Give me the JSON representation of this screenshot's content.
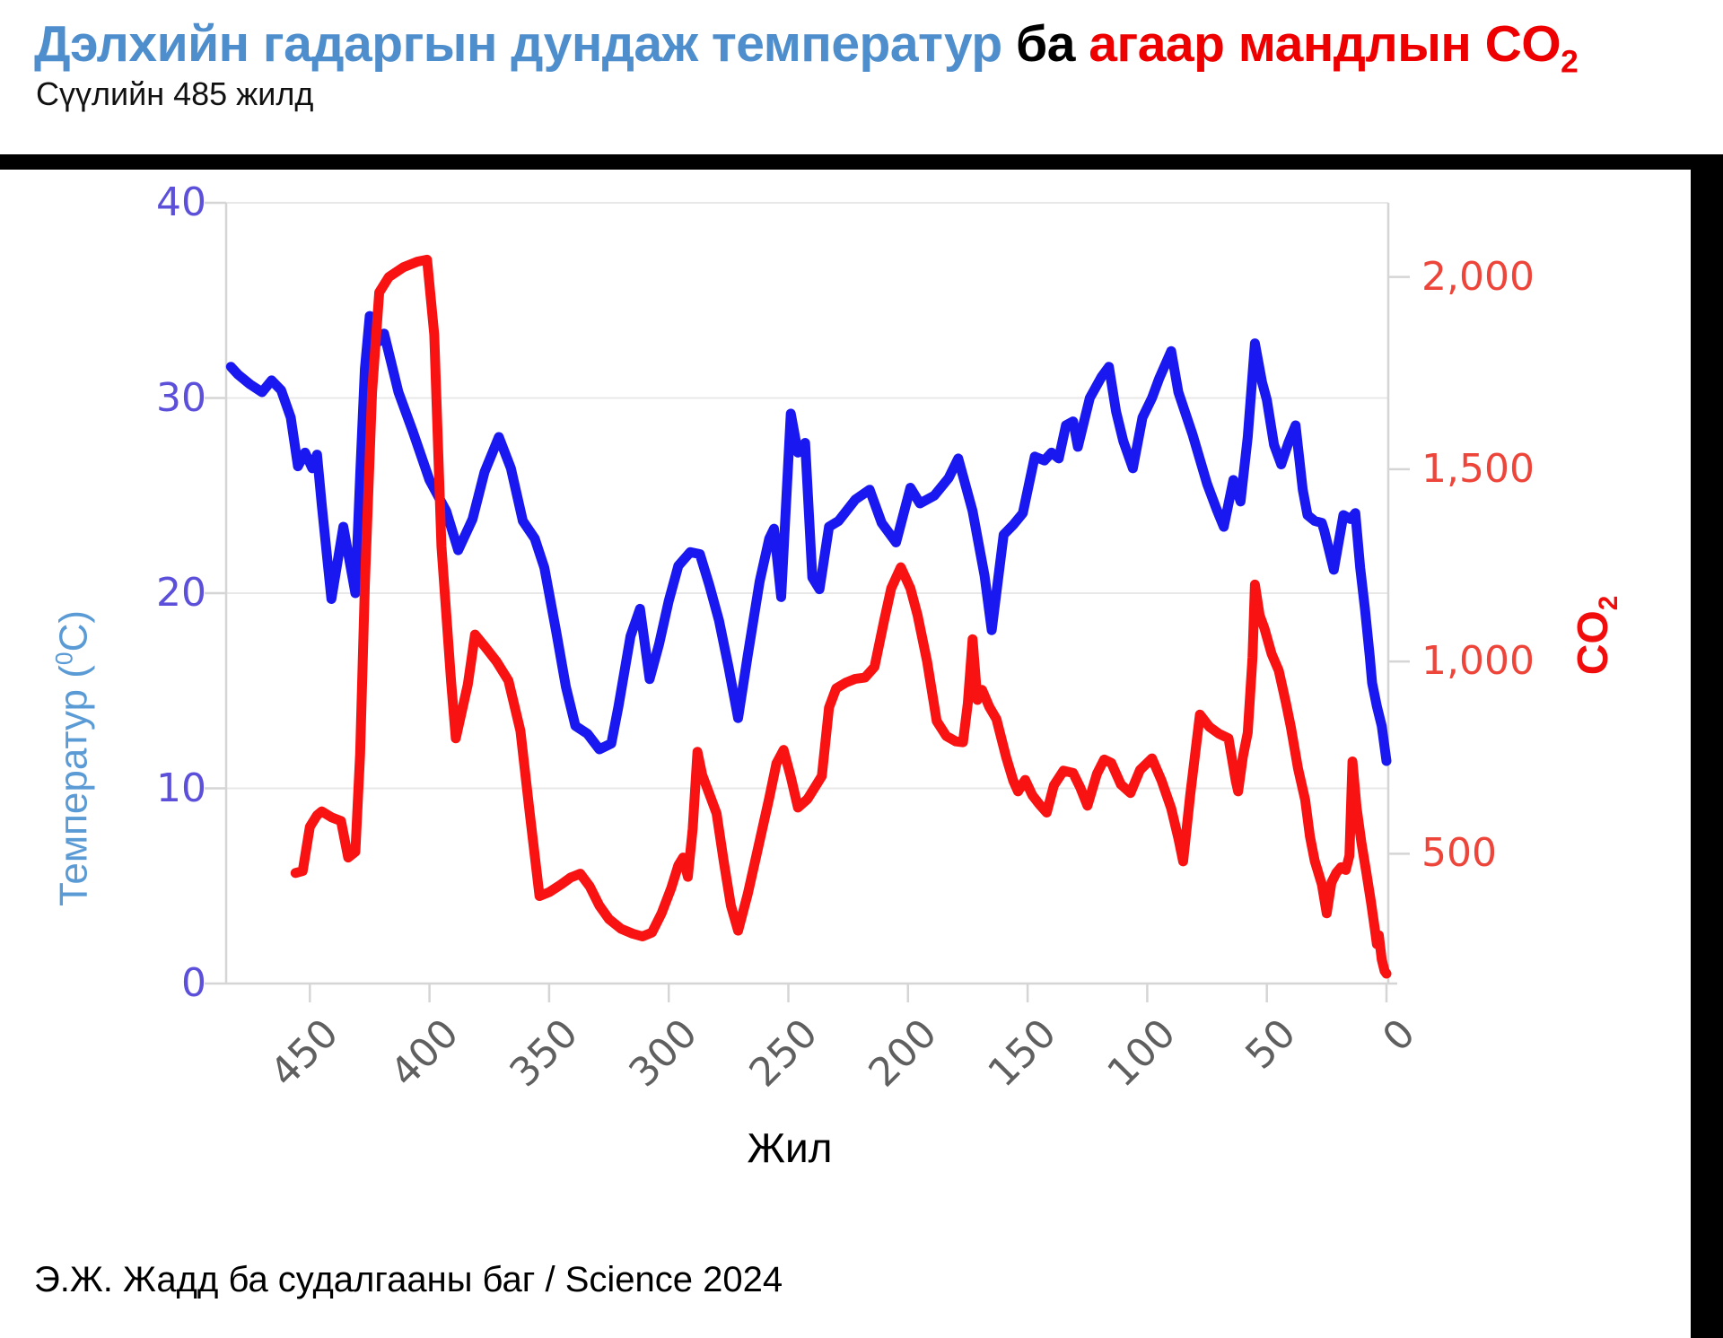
{
  "header": {
    "title_temp": "Дэлхийн гадаргын дундаж температур",
    "title_mid": " ба ",
    "title_co2": "агаар мандлын CO",
    "title_co2_sub": "2",
    "subtitle": "Сүүлийн 485 жилд"
  },
  "attribution": "Э.Ж. Жадд ба судалгааны баг / Science 2024",
  "axes": {
    "left": {
      "title_pre": "Температур (",
      "title_sup": "0",
      "title_post": "C)",
      "ticks": [
        {
          "v": 0,
          "label": "0"
        },
        {
          "v": 10,
          "label": "10"
        },
        {
          "v": 20,
          "label": "20"
        },
        {
          "v": 30,
          "label": "30"
        },
        {
          "v": 40,
          "label": "40"
        }
      ]
    },
    "right": {
      "title": "CO",
      "title_sub": "2",
      "ticks": [
        {
          "v": 500,
          "label": "500"
        },
        {
          "v": 1000,
          "label": "1,000"
        },
        {
          "v": 1500,
          "label": "1,500"
        },
        {
          "v": 2000,
          "label": "2,000"
        }
      ]
    },
    "x": {
      "title": "Жил",
      "ticks": [
        {
          "v": 450,
          "label": "450"
        },
        {
          "v": 400,
          "label": "400"
        },
        {
          "v": 350,
          "label": "350"
        },
        {
          "v": 300,
          "label": "300"
        },
        {
          "v": 250,
          "label": "250"
        },
        {
          "v": 200,
          "label": "200"
        },
        {
          "v": 150,
          "label": "150"
        },
        {
          "v": 100,
          "label": "100"
        },
        {
          "v": 50,
          "label": "50"
        },
        {
          "v": 0,
          "label": "0"
        }
      ]
    }
  },
  "colors": {
    "temperature_line": "#1a18f0",
    "co2_line": "#f81212",
    "gridline": "#e8e8e8",
    "axis_line": "#d5d5d5",
    "tick_stub": "#d5d5d5"
  },
  "chart_data": {
    "type": "line",
    "title": "Дэлхийн гадаргын дундаж температур ба агаар мандлын CO2",
    "subtitle": "Сүүлийн 485 жилд",
    "xlabel": "Жил",
    "x_range_ma": [
      485,
      0
    ],
    "x_ticks": [
      450,
      400,
      350,
      300,
      250,
      200,
      150,
      100,
      50,
      0
    ],
    "y_left": {
      "label": "Температур (0C)",
      "range": [
        0,
        40
      ],
      "ticks": [
        0,
        10,
        20,
        30,
        40
      ]
    },
    "y_right": {
      "label": "CO2",
      "ticks": [
        500,
        1000,
        1500,
        2000
      ],
      "align": {
        "offset": -3.2,
        "scale": 0.0197
      }
    },
    "grid": "horizontal-only",
    "legend": "none",
    "series": [
      {
        "name": "Температур",
        "axis": "left",
        "color": "#1a18f0",
        "points": [
          [
            483,
            31.6
          ],
          [
            480,
            31.2
          ],
          [
            475,
            30.7
          ],
          [
            470,
            30.3
          ],
          [
            466,
            30.9
          ],
          [
            462,
            30.4
          ],
          [
            458,
            29.0
          ],
          [
            455,
            26.5
          ],
          [
            452,
            27.2
          ],
          [
            449,
            26.4
          ],
          [
            447,
            27.1
          ],
          [
            445,
            24.5
          ],
          [
            441,
            19.7
          ],
          [
            436,
            23.4
          ],
          [
            431,
            20.0
          ],
          [
            429,
            26.0
          ],
          [
            427,
            31.5
          ],
          [
            425,
            34.2
          ],
          [
            421,
            32.9
          ],
          [
            419,
            33.3
          ],
          [
            413,
            30.3
          ],
          [
            407,
            28.3
          ],
          [
            400,
            25.8
          ],
          [
            393,
            24.2
          ],
          [
            388,
            22.2
          ],
          [
            382,
            23.8
          ],
          [
            377,
            26.2
          ],
          [
            371,
            28.0
          ],
          [
            366,
            26.4
          ],
          [
            361,
            23.7
          ],
          [
            356,
            22.8
          ],
          [
            352,
            21.3
          ],
          [
            347,
            18.0
          ],
          [
            343,
            15.2
          ],
          [
            339,
            13.2
          ],
          [
            334,
            12.8
          ],
          [
            329,
            12.0
          ],
          [
            324,
            12.3
          ],
          [
            321,
            14.2
          ],
          [
            316,
            17.8
          ],
          [
            312,
            19.2
          ],
          [
            308,
            15.6
          ],
          [
            304,
            17.4
          ],
          [
            300,
            19.6
          ],
          [
            296,
            21.4
          ],
          [
            291,
            22.1
          ],
          [
            287,
            22.0
          ],
          [
            283,
            20.4
          ],
          [
            279,
            18.6
          ],
          [
            275,
            16.2
          ],
          [
            271,
            13.6
          ],
          [
            267,
            16.8
          ],
          [
            262,
            20.6
          ],
          [
            258,
            22.8
          ],
          [
            256,
            23.3
          ],
          [
            253,
            19.8
          ],
          [
            249,
            29.2
          ],
          [
            246,
            27.2
          ],
          [
            243,
            27.7
          ],
          [
            240,
            20.8
          ],
          [
            237,
            20.2
          ],
          [
            233,
            23.4
          ],
          [
            229,
            23.7
          ],
          [
            222,
            24.8
          ],
          [
            216,
            25.3
          ],
          [
            211,
            23.6
          ],
          [
            205,
            22.6
          ],
          [
            199,
            25.4
          ],
          [
            195,
            24.6
          ],
          [
            189,
            25.0
          ],
          [
            183,
            25.9
          ],
          [
            179,
            26.9
          ],
          [
            173,
            24.2
          ],
          [
            168,
            20.9
          ],
          [
            165,
            18.1
          ],
          [
            160,
            23.0
          ],
          [
            156,
            23.5
          ],
          [
            152,
            24.1
          ],
          [
            147,
            27.0
          ],
          [
            143,
            26.8
          ],
          [
            140,
            27.2
          ],
          [
            137,
            26.9
          ],
          [
            134,
            28.6
          ],
          [
            131,
            28.8
          ],
          [
            129,
            27.5
          ],
          [
            124,
            30.0
          ],
          [
            119,
            31.1
          ],
          [
            116,
            31.6
          ],
          [
            113,
            29.3
          ],
          [
            110,
            27.8
          ],
          [
            106,
            26.4
          ],
          [
            102,
            29.0
          ],
          [
            98,
            30.0
          ],
          [
            95,
            31.0
          ],
          [
            90,
            32.4
          ],
          [
            87,
            30.3
          ],
          [
            81,
            28.1
          ],
          [
            75,
            25.6
          ],
          [
            71,
            24.3
          ],
          [
            68,
            23.4
          ],
          [
            64,
            25.8
          ],
          [
            61,
            24.7
          ],
          [
            58,
            28.0
          ],
          [
            55,
            32.8
          ],
          [
            52,
            30.8
          ],
          [
            50,
            29.9
          ],
          [
            47,
            27.6
          ],
          [
            44,
            26.6
          ],
          [
            41,
            27.7
          ],
          [
            38,
            28.6
          ],
          [
            35,
            25.3
          ],
          [
            33,
            24.0
          ],
          [
            30,
            23.7
          ],
          [
            27,
            23.6
          ],
          [
            26,
            23.2
          ],
          [
            22,
            21.2
          ],
          [
            18,
            24.0
          ],
          [
            15,
            23.8
          ],
          [
            13,
            24.1
          ],
          [
            11,
            21.3
          ],
          [
            9,
            19.2
          ],
          [
            7,
            16.8
          ],
          [
            6,
            15.4
          ],
          [
            4,
            14.2
          ],
          [
            2,
            13.2
          ],
          [
            0,
            11.4
          ]
        ]
      },
      {
        "name": "CO2",
        "axis": "right",
        "color": "#f81212",
        "points": [
          [
            456,
            450
          ],
          [
            453,
            455
          ],
          [
            450,
            570
          ],
          [
            447,
            600
          ],
          [
            445,
            610
          ],
          [
            441,
            595
          ],
          [
            437,
            585
          ],
          [
            434,
            490
          ],
          [
            431,
            505
          ],
          [
            429,
            760
          ],
          [
            427,
            1200
          ],
          [
            424,
            1700
          ],
          [
            421,
            1960
          ],
          [
            417,
            2000
          ],
          [
            411,
            2025
          ],
          [
            405,
            2040
          ],
          [
            401,
            2045
          ],
          [
            398,
            1850
          ],
          [
            395,
            1300
          ],
          [
            391,
            950
          ],
          [
            389,
            800
          ],
          [
            384,
            940
          ],
          [
            381,
            1070
          ],
          [
            377,
            1040
          ],
          [
            372,
            1000
          ],
          [
            367,
            950
          ],
          [
            362,
            820
          ],
          [
            358,
            600
          ],
          [
            354,
            390
          ],
          [
            350,
            400
          ],
          [
            345,
            420
          ],
          [
            341,
            438
          ],
          [
            337,
            448
          ],
          [
            333,
            415
          ],
          [
            329,
            365
          ],
          [
            325,
            330
          ],
          [
            320,
            305
          ],
          [
            315,
            292
          ],
          [
            311,
            285
          ],
          [
            307,
            295
          ],
          [
            303,
            345
          ],
          [
            299,
            410
          ],
          [
            296,
            470
          ],
          [
            294,
            490
          ],
          [
            292,
            440
          ],
          [
            290,
            565
          ],
          [
            288,
            765
          ],
          [
            286,
            705
          ],
          [
            283,
            655
          ],
          [
            280,
            605
          ],
          [
            277,
            480
          ],
          [
            274,
            365
          ],
          [
            271,
            300
          ],
          [
            267,
            395
          ],
          [
            263,
            505
          ],
          [
            258,
            645
          ],
          [
            255,
            735
          ],
          [
            252,
            770
          ],
          [
            249,
            700
          ],
          [
            246,
            620
          ],
          [
            242,
            642
          ],
          [
            239,
            672
          ],
          [
            236,
            702
          ],
          [
            233,
            880
          ],
          [
            230,
            930
          ],
          [
            226,
            945
          ],
          [
            222,
            955
          ],
          [
            218,
            958
          ],
          [
            214,
            986
          ],
          [
            210,
            1105
          ],
          [
            207,
            1190
          ],
          [
            203,
            1245
          ],
          [
            199,
            1190
          ],
          [
            196,
            1120
          ],
          [
            192,
            1000
          ],
          [
            188,
            845
          ],
          [
            184,
            806
          ],
          [
            180,
            792
          ],
          [
            177,
            790
          ],
          [
            175,
            892
          ],
          [
            173,
            1058
          ],
          [
            171,
            900
          ],
          [
            169,
            926
          ],
          [
            166,
            882
          ],
          [
            163,
            850
          ],
          [
            159,
            752
          ],
          [
            156,
            690
          ],
          [
            154,
            662
          ],
          [
            151,
            692
          ],
          [
            148,
            652
          ],
          [
            145,
            628
          ],
          [
            142,
            607
          ],
          [
            139,
            678
          ],
          [
            135,
            716
          ],
          [
            131,
            710
          ],
          [
            128,
            672
          ],
          [
            125,
            625
          ],
          [
            121,
            708
          ],
          [
            118,
            745
          ],
          [
            115,
            736
          ],
          [
            111,
            680
          ],
          [
            107,
            658
          ],
          [
            103,
            718
          ],
          [
            98,
            748
          ],
          [
            94,
            690
          ],
          [
            90,
            618
          ],
          [
            87,
            540
          ],
          [
            85,
            480
          ],
          [
            82,
            655
          ],
          [
            78,
            862
          ],
          [
            74,
            830
          ],
          [
            70,
            812
          ],
          [
            66,
            800
          ],
          [
            63,
            690
          ],
          [
            62,
            662
          ],
          [
            60,
            752
          ],
          [
            58,
            815
          ],
          [
            56,
            1010
          ],
          [
            55,
            1200
          ],
          [
            53,
            1120
          ],
          [
            51,
            1086
          ],
          [
            48,
            1020
          ],
          [
            45,
            976
          ],
          [
            42,
            892
          ],
          [
            40,
            830
          ],
          [
            37,
            722
          ],
          [
            34,
            640
          ],
          [
            32,
            545
          ],
          [
            30,
            482
          ],
          [
            27,
            420
          ],
          [
            25,
            345
          ],
          [
            23,
            425
          ],
          [
            21,
            450
          ],
          [
            19,
            465
          ],
          [
            17,
            458
          ],
          [
            15.5,
            495
          ],
          [
            14.2,
            740
          ],
          [
            12.5,
            620
          ],
          [
            10.5,
            530
          ],
          [
            8.5,
            455
          ],
          [
            6.5,
            375
          ],
          [
            5,
            310
          ],
          [
            4,
            265
          ],
          [
            3.2,
            288
          ],
          [
            2,
            225
          ],
          [
            0.8,
            195
          ],
          [
            0,
            188
          ]
        ]
      }
    ]
  }
}
